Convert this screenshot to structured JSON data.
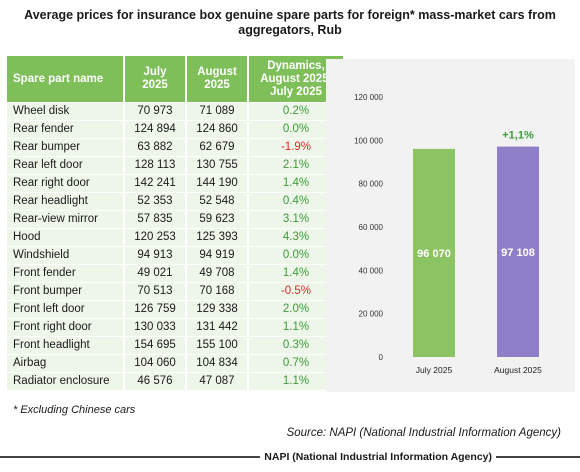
{
  "title": "Average prices for insurance box genuine spare parts for foreign* mass-market cars from aggregators, Rub",
  "table": {
    "headers": [
      "Spare part name",
      "July 2025",
      "August 2025",
      "Dynamics, August 2025/ July 2025"
    ],
    "rows": [
      [
        "Wheel disk",
        "70 973",
        "71 089",
        "0.2%"
      ],
      [
        "Rear fender",
        "124 894",
        "124 860",
        "0.0%"
      ],
      [
        "Rear bumper",
        "63 882",
        "62 679",
        "-1.9%"
      ],
      [
        "Rear left door",
        "128 113",
        "130 755",
        "2.1%"
      ],
      [
        "Rear right door",
        "142 241",
        "144 190",
        "1.4%"
      ],
      [
        "Rear headlight",
        "52 353",
        "52 548",
        "0.4%"
      ],
      [
        "Rear-view mirror",
        "57 835",
        "59 623",
        "3.1%"
      ],
      [
        "Hood",
        "120 253",
        "125 393",
        "4.3%"
      ],
      [
        "Windshield",
        "94 913",
        "94 919",
        "0.0%"
      ],
      [
        "Front fender",
        "49 021",
        "49 708",
        "1.4%"
      ],
      [
        "Front bumper",
        "70 513",
        "70 168",
        "-0.5%"
      ],
      [
        "Front left door",
        "126 759",
        "129 338",
        "2.0%"
      ],
      [
        "Front right door",
        "130 033",
        "131 442",
        "1.1%"
      ],
      [
        "Front headlight",
        "154 695",
        "155 100",
        "0.3%"
      ],
      [
        "Airbag",
        "104 060",
        "104 834",
        "0.7%"
      ],
      [
        "Radiator enclosure",
        "46 576",
        "47 087",
        "1.1%"
      ]
    ]
  },
  "colors": {
    "header": "#7fbf5a",
    "row": "#eef5e9",
    "positive": "#3d9b3a",
    "negative": "#d62a2a",
    "bar_july": "#8cc464",
    "bar_august": "#8f7fc8"
  },
  "chart_data": {
    "type": "bar",
    "categories": [
      "July 2025",
      "August 2025"
    ],
    "values": [
      96070,
      97108
    ],
    "value_labels": [
      "96 070",
      "97 108"
    ],
    "ylim": [
      0,
      120000
    ],
    "yticks": [
      0,
      20000,
      40000,
      60000,
      80000,
      100000,
      120000
    ],
    "ytick_labels": [
      "0",
      "20 000",
      "40 000",
      "60 000",
      "80 000",
      "100 000",
      "120 000"
    ],
    "annotation": "+1,1%",
    "grid": false
  },
  "footnote": "* Excluding Chinese cars",
  "source": "Source: NAPI (National Industrial Information Agency)",
  "footer": "NAPI (National Industrial Information Agency)"
}
